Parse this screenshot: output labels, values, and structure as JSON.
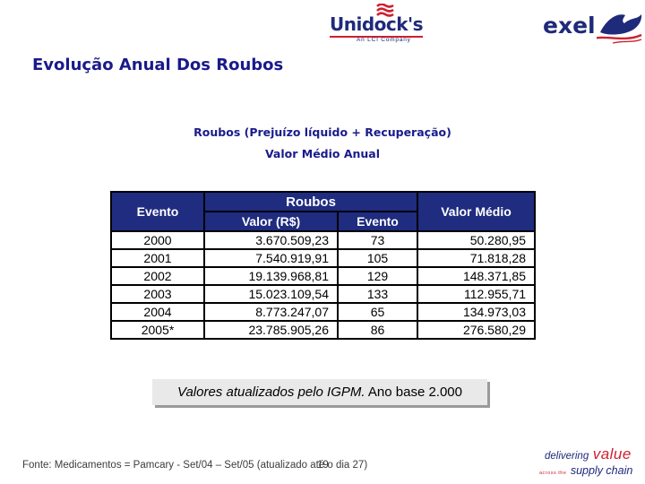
{
  "title": "Evolução Anual Dos Roubos",
  "subtitle": {
    "line1": "Roubos (Prejuízo líquido + Recuperação)",
    "line2": "Valor Médio Anual"
  },
  "header_logos": {
    "unidocks": {
      "name": "Unidock's",
      "tagline": "An LCI Company",
      "flag_icon": "red-waving-flag-icon"
    },
    "exel": {
      "name": "exel",
      "mark_icon": "dragon-swoosh-icon"
    }
  },
  "table": {
    "column_headers": {
      "evento": "Evento",
      "roubos_group": "Roubos",
      "valor": "Valor (R$)",
      "evento_count": "Evento",
      "valor_medio": "Valor Médio"
    },
    "rows": [
      [
        "2000",
        "3.670.509,23",
        "73",
        "50.280,95"
      ],
      [
        "2001",
        "7.540.919,91",
        "105",
        "71.818,28"
      ],
      [
        "2002",
        "19.139.968,81",
        "129",
        "148.371,85"
      ],
      [
        "2003",
        "15.023.109,54",
        "133",
        "112.955,71"
      ],
      [
        "2004",
        "8.773.247,07",
        "65",
        "134.973,03"
      ],
      [
        "2005*",
        "23.785.905,26",
        "86",
        "276.580,29"
      ]
    ]
  },
  "note": {
    "italic_part": "Valores atualizados pelo IGPM.",
    "normal_part": " Ano base 2.000"
  },
  "footer": {
    "source": "Fonte: Medicamentos = Pamcary - Set/04 – Set/05 (atualizado até o dia 27)",
    "page_number": "19"
  },
  "footer_logo": {
    "word1": "delivering",
    "word2": "value",
    "word3": "across the",
    "word4": "supply chain"
  },
  "colors": {
    "navy": "#1a1a8c",
    "table_header_bg": "#1f2c80",
    "brand_red": "#cc2030",
    "note_bg": "#e9e9e9",
    "footer_text": "#3c3c3c"
  }
}
